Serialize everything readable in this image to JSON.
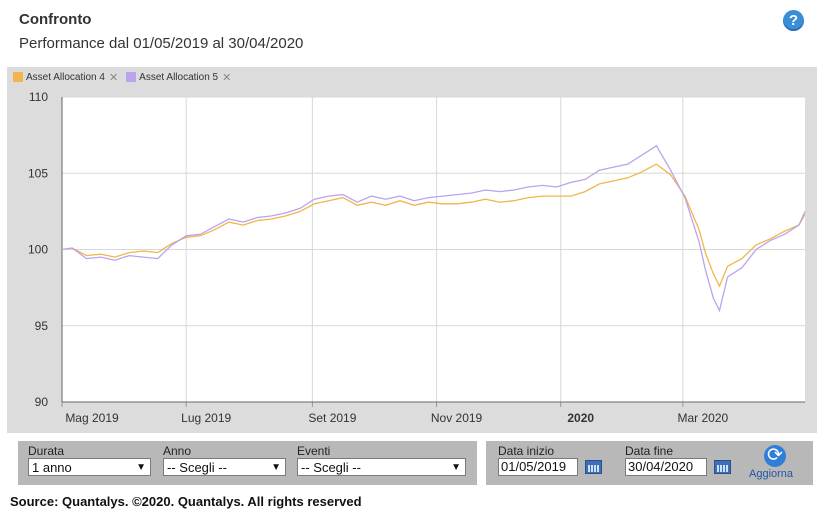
{
  "header": {
    "title": "Confronto",
    "subtitle": "Performance dal 01/05/2019 al 30/04/2020"
  },
  "legend": {
    "items": [
      {
        "label": "Asset Allocation 4",
        "color": "#f0b64a"
      },
      {
        "label": "Asset Allocation 5",
        "color": "#b9a4ee"
      }
    ],
    "remove_glyph": "✕"
  },
  "chart_data": {
    "type": "line",
    "ylim": [
      90,
      110
    ],
    "yticks": [
      90,
      95,
      100,
      105,
      110
    ],
    "xlim": [
      "2019-05-01",
      "2020-04-30"
    ],
    "xticks": [
      {
        "date": "2019-05-01",
        "label": "Mag 2019",
        "bold": false
      },
      {
        "date": "2019-07-01",
        "label": "Lug 2019",
        "bold": false
      },
      {
        "date": "2019-09-01",
        "label": "Set 2019",
        "bold": false
      },
      {
        "date": "2019-11-01",
        "label": "Nov 2019",
        "bold": false
      },
      {
        "date": "2020-01-01",
        "label": "2020",
        "bold": true
      },
      {
        "date": "2020-03-01",
        "label": "Mar 2020",
        "bold": false
      }
    ],
    "grid": true,
    "series": [
      {
        "name": "Asset Allocation 4",
        "color": "#f0b64a",
        "points": [
          [
            "2019-05-01",
            100.0
          ],
          [
            "2019-05-06",
            100.1
          ],
          [
            "2019-05-13",
            99.6
          ],
          [
            "2019-05-20",
            99.7
          ],
          [
            "2019-05-27",
            99.5
          ],
          [
            "2019-06-03",
            99.8
          ],
          [
            "2019-06-10",
            99.9
          ],
          [
            "2019-06-17",
            99.8
          ],
          [
            "2019-06-24",
            100.4
          ],
          [
            "2019-07-01",
            100.8
          ],
          [
            "2019-07-08",
            100.9
          ],
          [
            "2019-07-15",
            101.3
          ],
          [
            "2019-07-22",
            101.8
          ],
          [
            "2019-07-29",
            101.6
          ],
          [
            "2019-08-05",
            101.9
          ],
          [
            "2019-08-12",
            102.0
          ],
          [
            "2019-08-19",
            102.2
          ],
          [
            "2019-08-26",
            102.5
          ],
          [
            "2019-09-02",
            103.0
          ],
          [
            "2019-09-09",
            103.2
          ],
          [
            "2019-09-16",
            103.4
          ],
          [
            "2019-09-23",
            102.9
          ],
          [
            "2019-09-30",
            103.1
          ],
          [
            "2019-10-07",
            102.9
          ],
          [
            "2019-10-14",
            103.2
          ],
          [
            "2019-10-21",
            102.9
          ],
          [
            "2019-10-28",
            103.1
          ],
          [
            "2019-11-04",
            103.0
          ],
          [
            "2019-11-11",
            103.0
          ],
          [
            "2019-11-18",
            103.1
          ],
          [
            "2019-11-25",
            103.3
          ],
          [
            "2019-12-02",
            103.1
          ],
          [
            "2019-12-09",
            103.2
          ],
          [
            "2019-12-16",
            103.4
          ],
          [
            "2019-12-23",
            103.5
          ],
          [
            "2019-12-30",
            103.5
          ],
          [
            "2020-01-06",
            103.5
          ],
          [
            "2020-01-13",
            103.8
          ],
          [
            "2020-01-20",
            104.3
          ],
          [
            "2020-01-27",
            104.5
          ],
          [
            "2020-02-03",
            104.7
          ],
          [
            "2020-02-10",
            105.1
          ],
          [
            "2020-02-17",
            105.6
          ],
          [
            "2020-02-24",
            104.9
          ],
          [
            "2020-03-02",
            103.5
          ],
          [
            "2020-03-09",
            101.3
          ],
          [
            "2020-03-12",
            99.8
          ],
          [
            "2020-03-16",
            98.4
          ],
          [
            "2020-03-19",
            97.6
          ],
          [
            "2020-03-23",
            98.9
          ],
          [
            "2020-03-30",
            99.4
          ],
          [
            "2020-04-06",
            100.3
          ],
          [
            "2020-04-13",
            100.7
          ],
          [
            "2020-04-20",
            101.2
          ],
          [
            "2020-04-27",
            101.6
          ],
          [
            "2020-04-30",
            102.3
          ]
        ]
      },
      {
        "name": "Asset Allocation 5",
        "color": "#b9a4ee",
        "points": [
          [
            "2019-05-01",
            100.0
          ],
          [
            "2019-05-06",
            100.1
          ],
          [
            "2019-05-13",
            99.4
          ],
          [
            "2019-05-20",
            99.5
          ],
          [
            "2019-05-27",
            99.3
          ],
          [
            "2019-06-03",
            99.6
          ],
          [
            "2019-06-10",
            99.5
          ],
          [
            "2019-06-17",
            99.4
          ],
          [
            "2019-06-24",
            100.3
          ],
          [
            "2019-07-01",
            100.9
          ],
          [
            "2019-07-08",
            101.0
          ],
          [
            "2019-07-15",
            101.5
          ],
          [
            "2019-07-22",
            102.0
          ],
          [
            "2019-07-29",
            101.8
          ],
          [
            "2019-08-05",
            102.1
          ],
          [
            "2019-08-12",
            102.2
          ],
          [
            "2019-08-19",
            102.4
          ],
          [
            "2019-08-26",
            102.7
          ],
          [
            "2019-09-02",
            103.3
          ],
          [
            "2019-09-09",
            103.5
          ],
          [
            "2019-09-16",
            103.6
          ],
          [
            "2019-09-23",
            103.1
          ],
          [
            "2019-09-30",
            103.5
          ],
          [
            "2019-10-07",
            103.3
          ],
          [
            "2019-10-14",
            103.5
          ],
          [
            "2019-10-21",
            103.2
          ],
          [
            "2019-10-28",
            103.4
          ],
          [
            "2019-11-04",
            103.5
          ],
          [
            "2019-11-11",
            103.6
          ],
          [
            "2019-11-18",
            103.7
          ],
          [
            "2019-11-25",
            103.9
          ],
          [
            "2019-12-02",
            103.8
          ],
          [
            "2019-12-09",
            103.9
          ],
          [
            "2019-12-16",
            104.1
          ],
          [
            "2019-12-23",
            104.2
          ],
          [
            "2019-12-30",
            104.1
          ],
          [
            "2020-01-06",
            104.4
          ],
          [
            "2020-01-13",
            104.6
          ],
          [
            "2020-01-20",
            105.2
          ],
          [
            "2020-01-27",
            105.4
          ],
          [
            "2020-02-03",
            105.6
          ],
          [
            "2020-02-10",
            106.2
          ],
          [
            "2020-02-17",
            106.8
          ],
          [
            "2020-02-24",
            105.2
          ],
          [
            "2020-03-02",
            103.4
          ],
          [
            "2020-03-09",
            100.5
          ],
          [
            "2020-03-12",
            98.7
          ],
          [
            "2020-03-16",
            96.8
          ],
          [
            "2020-03-19",
            96.0
          ],
          [
            "2020-03-23",
            98.2
          ],
          [
            "2020-03-30",
            98.8
          ],
          [
            "2020-04-06",
            100.0
          ],
          [
            "2020-04-13",
            100.6
          ],
          [
            "2020-04-20",
            101.0
          ],
          [
            "2020-04-27",
            101.6
          ],
          [
            "2020-04-30",
            102.5
          ]
        ]
      }
    ]
  },
  "controls": {
    "durata": {
      "label": "Durata",
      "value": "1 anno"
    },
    "anno": {
      "label": "Anno",
      "value": "-- Scegli --"
    },
    "eventi": {
      "label": "Eventi",
      "value": "-- Scegli --"
    },
    "data_inizio": {
      "label": "Data inizio",
      "value": "01/05/2019"
    },
    "data_fine": {
      "label": "Data fine",
      "value": "30/04/2020"
    },
    "refresh_label": "Aggiorna"
  },
  "footer": {
    "source": "Source: Quantalys. ©2020. Quantalys. All rights reserved"
  }
}
